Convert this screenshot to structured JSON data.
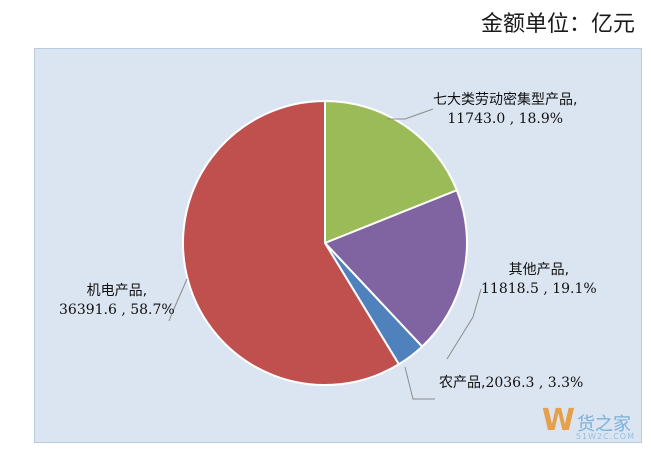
{
  "unit_label": "金额单位：亿元",
  "chart_data": {
    "type": "pie",
    "title": "",
    "slices": [
      {
        "name": "七大类劳动密集型产品,",
        "value": 11743.0,
        "value_text": "11743.0 , 18.9%",
        "percent": 18.9,
        "color": "#9bbb59"
      },
      {
        "name": "其他产品,",
        "value": 11818.5,
        "value_text": "11818.5 , 19.1%",
        "percent": 19.1,
        "color": "#8064a2"
      },
      {
        "name": "农产品,",
        "value": 2036.3,
        "value_text": "2036.3 , 3.3%",
        "percent": 3.3,
        "color": "#4f81bd"
      },
      {
        "name": "机电产品,",
        "value": 36391.6,
        "value_text": "36391.6 , 58.7%",
        "percent": 58.7,
        "color": "#c0504d"
      }
    ]
  },
  "watermark": {
    "logo_letter": "W",
    "text": "货之家",
    "sub": "51W2C.COM"
  }
}
